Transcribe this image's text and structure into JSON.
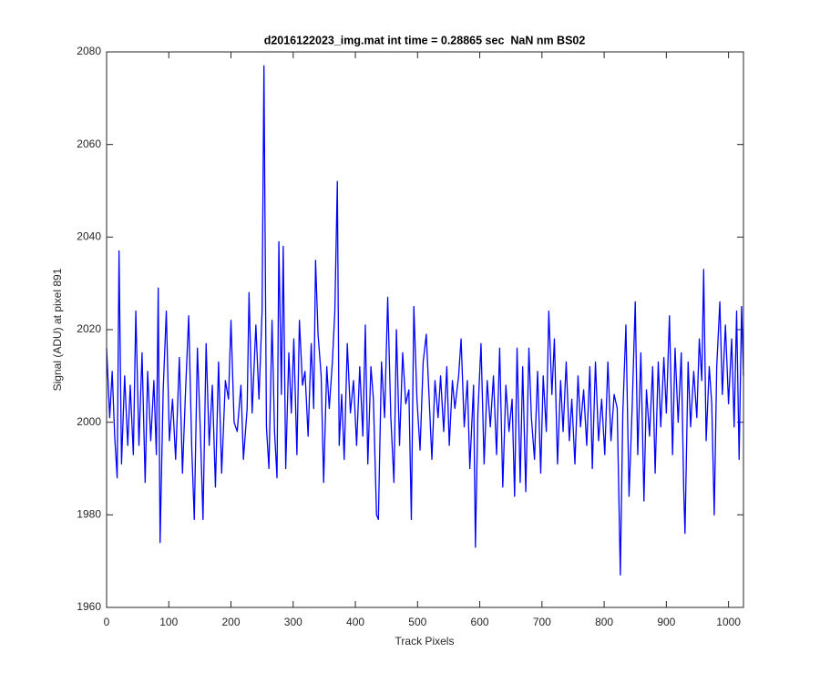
{
  "chart_data": {
    "type": "line",
    "title": "d2016122023_img.mat int time = 0.28865 sec  NaN nm BS02",
    "x_label": "Track Pixels",
    "y_label": "Signal (ADU) at pixel 891",
    "color": "#0000ff",
    "xlim": [
      0,
      1024
    ],
    "ylim": [
      1960,
      2080
    ],
    "xticks": [
      0,
      100,
      200,
      300,
      400,
      500,
      600,
      700,
      800,
      900,
      1000
    ],
    "yticks": [
      1960,
      1980,
      2000,
      2020,
      2040,
      2060,
      2080
    ],
    "x": [
      0,
      5,
      9,
      13,
      17,
      20,
      24,
      29,
      34,
      38,
      43,
      47,
      52,
      57,
      62,
      66,
      71,
      76,
      80,
      83,
      86,
      91,
      96,
      101,
      106,
      111,
      117,
      122,
      127,
      132,
      137,
      141,
      146,
      151,
      155,
      160,
      165,
      170,
      175,
      180,
      185,
      191,
      196,
      200,
      205,
      210,
      216,
      220,
      226,
      229,
      234,
      240,
      245,
      250,
      253,
      257,
      261,
      266,
      270,
      274,
      277,
      281,
      284,
      288,
      293,
      297,
      301,
      306,
      310,
      315,
      319,
      324,
      329,
      333,
      336,
      340,
      345,
      349,
      354,
      358,
      363,
      367,
      371,
      374,
      378,
      382,
      387,
      392,
      397,
      402,
      407,
      412,
      416,
      420,
      425,
      429,
      434,
      437,
      442,
      447,
      452,
      457,
      462,
      466,
      471,
      476,
      481,
      486,
      490,
      494,
      499,
      504,
      509,
      514,
      518,
      523,
      528,
      533,
      537,
      542,
      547,
      551,
      556,
      560,
      566,
      570,
      575,
      580,
      584,
      590,
      593,
      597,
      602,
      607,
      612,
      617,
      622,
      627,
      632,
      637,
      642,
      647,
      652,
      656,
      660,
      665,
      669,
      674,
      679,
      683,
      688,
      693,
      698,
      702,
      707,
      711,
      716,
      720,
      725,
      730,
      734,
      739,
      744,
      748,
      753,
      758,
      762,
      767,
      772,
      777,
      781,
      786,
      791,
      796,
      801,
      806,
      811,
      816,
      821,
      826,
      830,
      835,
      840,
      845,
      850,
      854,
      859,
      864,
      868,
      873,
      878,
      882,
      887,
      891,
      896,
      900,
      905,
      910,
      914,
      919,
      924,
      928,
      930,
      935,
      939,
      944,
      949,
      953,
      957,
      960,
      964,
      969,
      973,
      977,
      981,
      986,
      990,
      995,
      1000,
      1005,
      1009,
      1013,
      1017,
      1021,
      1024
    ],
    "values": [
      2016,
      2001,
      2011,
      1997,
      1988,
      2037,
      1991,
      2010,
      1995,
      2008,
      1993,
      2024,
      1995,
      2015,
      1987,
      2011,
      1996,
      2009,
      1993,
      2029,
      1974,
      2007,
      2024,
      1996,
      2005,
      1992,
      2014,
      1989,
      2007,
      2023,
      1994,
      1979,
      2016,
      1997,
      1979,
      2017,
      1995,
      2008,
      1986,
      2013,
      1989,
      2009,
      2005,
      2022,
      2000,
      1998,
      2008,
      1992,
      2003,
      2028,
      2002,
      2021,
      2005,
      2024,
      2077,
      1999,
      1990,
      2022,
      1998,
      1988,
      2039,
      2006,
      2038,
      1990,
      2015,
      2002,
      2018,
      1993,
      2022,
      2008,
      2011,
      1997,
      2017,
      2003,
      2035,
      2019,
      2010,
      1987,
      2012,
      2003,
      2013,
      2024,
      2052,
      1995,
      2006,
      1992,
      2017,
      2002,
      2009,
      1995,
      2012,
      1997,
      2021,
      1991,
      2012,
      2005,
      1980,
      1979,
      2013,
      2001,
      2027,
      2001,
      1987,
      2020,
      1995,
      2015,
      2004,
      2007,
      1979,
      2025,
      2005,
      1994,
      2013,
      2019,
      2007,
      1992,
      2009,
      2001,
      2010,
      1998,
      2012,
      1995,
      2009,
      2003,
      2010,
      2018,
      1999,
      2009,
      1990,
      2008,
      1973,
      2002,
      2017,
      1991,
      2009,
      1999,
      2010,
      1993,
      2016,
      1986,
      2008,
      1998,
      2005,
      1984,
      2016,
      1987,
      2012,
      1985,
      2016,
      2001,
      1992,
      2011,
      1989,
      2010,
      1998,
      2024,
      2006,
      2018,
      1991,
      2009,
      1998,
      2013,
      1996,
      2005,
      1991,
      2010,
      1999,
      2007,
      1995,
      2012,
      1990,
      2013,
      1996,
      2005,
      1993,
      2013,
      1996,
      2006,
      2003,
      1967,
      2002,
      2021,
      1984,
      2003,
      2026,
      1993,
      2015,
      1983,
      2007,
      1997,
      2012,
      1989,
      2013,
      1999,
      2014,
      2002,
      2023,
      1993,
      2016,
      2000,
      2015,
      1985,
      1976,
      2013,
      1999,
      2011,
      2001,
      2018,
      2009,
      2033,
      1996,
      2012,
      2004,
      1980,
      2012,
      2026,
      2006,
      2021,
      2004,
      2018,
      1999,
      2024,
      1992,
      2025,
      2010
    ]
  }
}
